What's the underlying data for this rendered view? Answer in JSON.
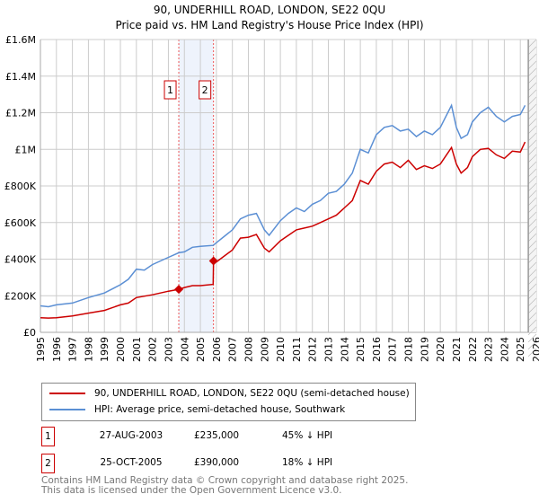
{
  "chart_data": {
    "type": "line",
    "title": "90, UNDERHILL ROAD, LONDON, SE22 0QU",
    "subtitle": "Price paid vs. HM Land Registry's House Price Index (HPI)",
    "xlim": [
      1995,
      2026
    ],
    "ylim": [
      0,
      1600000
    ],
    "grid": true,
    "x_ticks": [
      "1995",
      "1996",
      "1997",
      "1998",
      "1999",
      "2000",
      "2001",
      "2002",
      "2003",
      "2004",
      "2005",
      "2006",
      "2007",
      "2008",
      "2009",
      "2010",
      "2011",
      "2012",
      "2013",
      "2014",
      "2015",
      "2016",
      "2017",
      "2018",
      "2019",
      "2020",
      "2021",
      "2022",
      "2023",
      "2024",
      "2025",
      "2026"
    ],
    "y_ticks": [
      {
        "v": 0,
        "label": "£0"
      },
      {
        "v": 200000,
        "label": "£200K"
      },
      {
        "v": 400000,
        "label": "£400K"
      },
      {
        "v": 600000,
        "label": "£600K"
      },
      {
        "v": 800000,
        "label": "£800K"
      },
      {
        "v": 1000000,
        "label": "£1M"
      },
      {
        "v": 1200000,
        "label": "£1.2M"
      },
      {
        "v": 1400000,
        "label": "£1.4M"
      },
      {
        "v": 1600000,
        "label": "£1.6M"
      }
    ],
    "shaded_range": [
      2003.65,
      2005.82
    ],
    "forecast_hatch_from": 2025.5,
    "series": [
      {
        "name": "90, UNDERHILL ROAD, LONDON, SE22 0QU (semi-detached house)",
        "color": "#cc0000",
        "x": [
          1995,
          1995.5,
          1996,
          1997,
          1998,
          1999,
          2000,
          2000.5,
          2001,
          2002,
          2003,
          2003.65,
          2004,
          2004.5,
          2005,
          2005.8,
          2005.82,
          2006,
          2007,
          2007.5,
          2008,
          2008.5,
          2009,
          2009.3,
          2010,
          2010.5,
          2011,
          2011.5,
          2012,
          2012.5,
          2013,
          2013.5,
          2014,
          2014.5,
          2015,
          2015.5,
          2016,
          2016.5,
          2017,
          2017.5,
          2018,
          2018.5,
          2019,
          2019.5,
          2020,
          2020.7,
          2021,
          2021.3,
          2021.7,
          2022,
          2022.5,
          2023,
          2023.5,
          2024,
          2024.5,
          2025,
          2025.3
        ],
        "y": [
          80000,
          78000,
          80000,
          90000,
          105000,
          120000,
          150000,
          160000,
          190000,
          205000,
          225000,
          235000,
          245000,
          255000,
          255000,
          262000,
          390000,
          385000,
          450000,
          515000,
          520000,
          535000,
          460000,
          440000,
          500000,
          530000,
          560000,
          570000,
          580000,
          600000,
          620000,
          640000,
          680000,
          720000,
          830000,
          810000,
          880000,
          920000,
          930000,
          900000,
          940000,
          890000,
          910000,
          895000,
          920000,
          1010000,
          920000,
          870000,
          900000,
          960000,
          1000000,
          1005000,
          970000,
          950000,
          990000,
          985000,
          1040000
        ]
      },
      {
        "name": "HPI: Average price, semi-detached house, Southwark",
        "color": "#5b8fd4",
        "x": [
          1995,
          1995.5,
          1996,
          1997,
          1998,
          1999,
          2000,
          2000.5,
          2001,
          2001.5,
          2002,
          2003,
          2003.65,
          2004,
          2004.5,
          2005,
          2005.8,
          2006,
          2007,
          2007.5,
          2008,
          2008.5,
          2009,
          2009.3,
          2010,
          2010.5,
          2011,
          2011.5,
          2012,
          2012.5,
          2013,
          2013.5,
          2014,
          2014.5,
          2015,
          2015.5,
          2016,
          2016.5,
          2017,
          2017.5,
          2018,
          2018.5,
          2019,
          2019.5,
          2020,
          2020.7,
          2021,
          2021.3,
          2021.7,
          2022,
          2022.5,
          2023,
          2023.5,
          2024,
          2024.5,
          2025,
          2025.3
        ],
        "y": [
          145000,
          140000,
          150000,
          160000,
          190000,
          215000,
          260000,
          290000,
          345000,
          340000,
          370000,
          410000,
          435000,
          440000,
          465000,
          470000,
          475000,
          490000,
          560000,
          620000,
          640000,
          650000,
          560000,
          530000,
          610000,
          650000,
          680000,
          660000,
          700000,
          720000,
          760000,
          770000,
          810000,
          870000,
          1000000,
          980000,
          1080000,
          1120000,
          1130000,
          1100000,
          1110000,
          1070000,
          1100000,
          1080000,
          1120000,
          1240000,
          1120000,
          1060000,
          1080000,
          1150000,
          1200000,
          1230000,
          1180000,
          1150000,
          1180000,
          1190000,
          1240000
        ]
      }
    ],
    "sales": [
      {
        "id": "1",
        "x": 2003.65,
        "y": 235000,
        "date": "27-AUG-2003",
        "price": "£235,000",
        "hpi": "45% ↓ HPI"
      },
      {
        "id": "2",
        "x": 2005.82,
        "y": 390000,
        "date": "25-OCT-2005",
        "price": "£390,000",
        "hpi": "18% ↓ HPI"
      }
    ]
  },
  "legend": {
    "red": "90, UNDERHILL ROAD, LONDON, SE22 0QU (semi-detached house)",
    "blue": "HPI: Average price, semi-detached house, Southwark"
  },
  "footer": {
    "line1": "Contains HM Land Registry data © Crown copyright and database right 2025.",
    "line2": "This data is licensed under the Open Government Licence v3.0."
  }
}
